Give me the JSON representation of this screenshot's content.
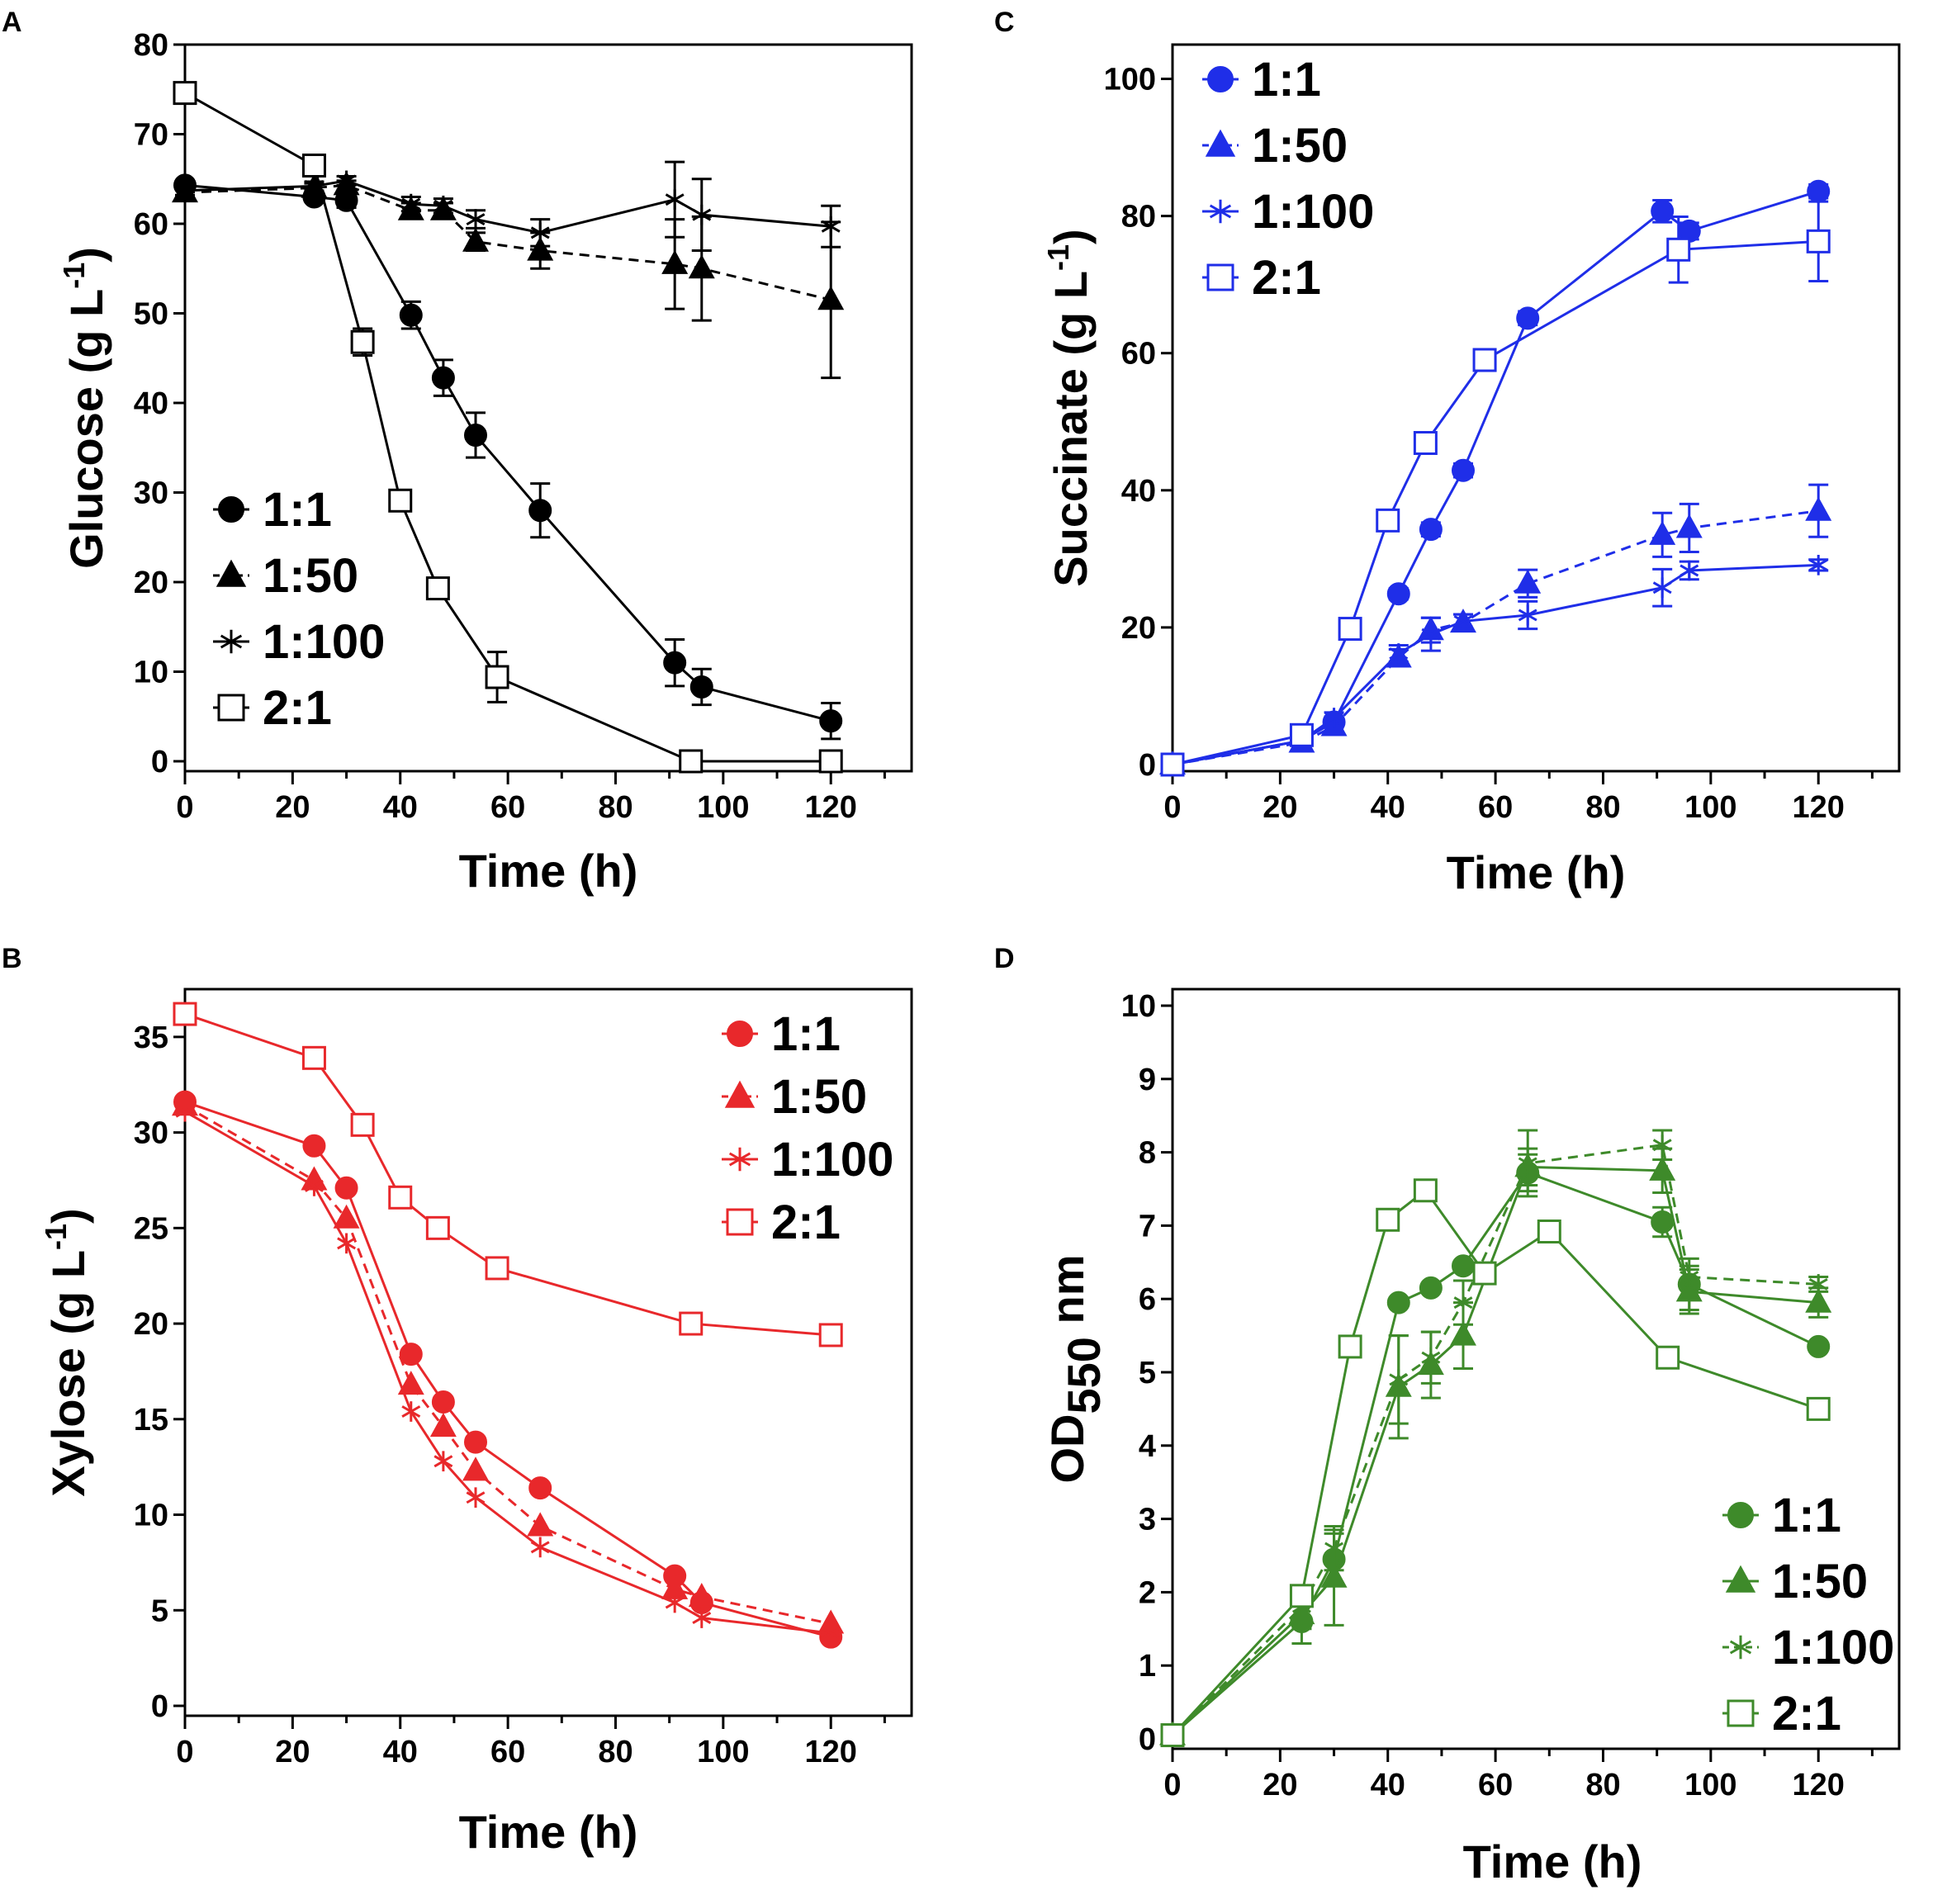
{
  "figure": {
    "time_label": "Time (h)"
  },
  "chart_data": [
    {
      "panel": "A",
      "type": "line",
      "title": "",
      "xlabel": "Time (h)",
      "ylabel": "Glucose (g L-1)",
      "ylabel_main": "Glucose (g L",
      "ylabel_sup": "-1",
      "ylabel_end": ")",
      "xlim": [
        0,
        135
      ],
      "ylim": [
        0,
        80
      ],
      "xticks": [
        0,
        20,
        40,
        60,
        80,
        100,
        120
      ],
      "yticks": [
        0,
        10,
        20,
        30,
        40,
        50,
        60,
        70,
        80
      ],
      "color": "#000000",
      "legend_position": "bottom-left",
      "series": [
        {
          "name": "1:1",
          "marker": "circle",
          "dashed": false,
          "x": [
            0,
            24,
            30,
            42,
            48,
            54,
            66,
            91,
            96,
            120
          ],
          "y": [
            64.3,
            63,
            62.6,
            49.8,
            42.8,
            36.4,
            28,
            11,
            8.3,
            4.5
          ],
          "err": [
            0.5,
            0.5,
            0.8,
            1.5,
            2,
            2.5,
            3,
            2.6,
            2,
            2
          ]
        },
        {
          "name": "1:50",
          "marker": "triangle",
          "dashed": true,
          "x": [
            0,
            24,
            30,
            42,
            48,
            54,
            66,
            91,
            96,
            120
          ],
          "y": [
            63.5,
            64,
            64.3,
            61.5,
            61.5,
            58,
            57,
            55.5,
            55,
            51.5
          ],
          "err": [
            0.5,
            0.5,
            0.5,
            0.8,
            0.8,
            1,
            2,
            5,
            5.8,
            8.7
          ]
        },
        {
          "name": "1:100",
          "marker": "star",
          "dashed": false,
          "x": [
            0,
            24,
            30,
            42,
            48,
            54,
            66,
            91,
            96,
            120
          ],
          "y": [
            63.7,
            64.2,
            64.8,
            62.2,
            62,
            60.5,
            59,
            62.7,
            61,
            59.7
          ],
          "err": [
            0.5,
            0.5,
            0.5,
            0.8,
            0.8,
            1,
            1.5,
            4.2,
            4,
            2.3
          ]
        },
        {
          "name": "2:1",
          "marker": "square",
          "dashed": false,
          "x": [
            0,
            24,
            33,
            40,
            47,
            58,
            94,
            120
          ],
          "y": [
            74.6,
            66.5,
            46.8,
            29.1,
            19.3,
            9.4,
            0,
            0
          ],
          "err": [
            0,
            0,
            1.5,
            0,
            0,
            2.8,
            0,
            0
          ]
        }
      ]
    },
    {
      "panel": "B",
      "type": "line",
      "title": "",
      "xlabel": "Time (h)",
      "ylabel": "Xylose (g L-1)",
      "ylabel_main": "Xylose (g L",
      "ylabel_sup": "-1",
      "ylabel_end": ")",
      "xlim": [
        0,
        135
      ],
      "ylim": [
        0,
        37.5
      ],
      "xticks": [
        0,
        20,
        40,
        60,
        80,
        100,
        120
      ],
      "yticks": [
        0,
        5,
        10,
        15,
        20,
        25,
        30,
        35
      ],
      "color": "#e8282b",
      "legend_position": "top-right",
      "series": [
        {
          "name": "1:1",
          "marker": "circle",
          "dashed": false,
          "x": [
            0,
            24,
            30,
            42,
            48,
            54,
            66,
            91,
            96,
            120
          ],
          "y": [
            31.6,
            29.3,
            27.1,
            18.4,
            15.9,
            13.8,
            11.4,
            6.8,
            5.4,
            3.6
          ],
          "err": []
        },
        {
          "name": "1:50",
          "marker": "triangle",
          "dashed": true,
          "x": [
            0,
            24,
            30,
            42,
            48,
            54,
            66,
            91,
            96,
            120
          ],
          "y": [
            31.4,
            27.5,
            25.5,
            16.8,
            14.6,
            12.3,
            9.4,
            6.1,
            5.7,
            4.3
          ],
          "err": []
        },
        {
          "name": "1:100",
          "marker": "star",
          "dashed": false,
          "x": [
            0,
            24,
            30,
            42,
            48,
            54,
            66,
            91,
            96,
            120
          ],
          "y": [
            31.1,
            27.2,
            24.2,
            15.4,
            12.8,
            10.9,
            8.3,
            5.4,
            4.6,
            3.8
          ],
          "err": []
        },
        {
          "name": "2:1",
          "marker": "square",
          "dashed": false,
          "x": [
            0,
            24,
            33,
            40,
            47,
            58,
            94,
            120
          ],
          "y": [
            36.2,
            33.9,
            30.4,
            26.6,
            25,
            22.9,
            20,
            19.4
          ],
          "err": []
        }
      ]
    },
    {
      "panel": "C",
      "type": "line",
      "title": "",
      "xlabel": "Time (h)",
      "ylabel": "Succinate (g L-1)",
      "ylabel_main": "Succinate (g L",
      "ylabel_sup": "-1",
      "ylabel_end": ")",
      "xlim": [
        0,
        135
      ],
      "ylim": [
        0,
        105
      ],
      "xticks": [
        0,
        20,
        40,
        60,
        80,
        100,
        120
      ],
      "yticks": [
        0,
        20,
        40,
        60,
        80,
        100
      ],
      "color": "#1f2ee8",
      "legend_position": "top-left",
      "series": [
        {
          "name": "1:1",
          "marker": "circle",
          "dashed": false,
          "x": [
            0,
            24,
            30,
            42,
            48,
            54,
            66,
            91,
            96,
            120
          ],
          "y": [
            0,
            3.5,
            6.2,
            24.9,
            34.3,
            42.9,
            65.1,
            80.7,
            77.8,
            83.6
          ],
          "err": [
            0,
            0.5,
            0.8,
            0.8,
            1,
            1,
            1,
            1.6,
            1.2,
            1
          ]
        },
        {
          "name": "1:50",
          "marker": "triangle",
          "dashed": true,
          "x": [
            0,
            24,
            30,
            42,
            48,
            54,
            66,
            91,
            96,
            120
          ],
          "y": [
            0,
            3.2,
            5.6,
            15.6,
            19.6,
            20.7,
            26.4,
            33.5,
            34.5,
            37
          ],
          "err": [
            0,
            0.5,
            0.8,
            1.2,
            1.8,
            1.2,
            2,
            3.2,
            3.5,
            3.8
          ]
        },
        {
          "name": "1:100",
          "marker": "star",
          "dashed": false,
          "x": [
            0,
            24,
            30,
            42,
            48,
            54,
            66,
            91,
            96,
            120
          ],
          "y": [
            0,
            3.5,
            6.8,
            16.2,
            19,
            20.9,
            21.8,
            25.8,
            28.3,
            29.1
          ],
          "err": [
            0,
            0.5,
            0.8,
            1.2,
            2.4,
            1,
            2,
            2.7,
            1.3,
            0.8
          ]
        },
        {
          "name": "2:1",
          "marker": "square",
          "dashed": false,
          "x": [
            0,
            24,
            33,
            40,
            47,
            58,
            94,
            120
          ],
          "y": [
            0,
            4.3,
            19.8,
            35.6,
            46.9,
            59,
            75.1,
            76.3
          ],
          "err": [
            0,
            0,
            0,
            0,
            0,
            1.5,
            4.8,
            5.8
          ]
        }
      ]
    },
    {
      "panel": "D",
      "type": "line",
      "title": "",
      "xlabel": "Time (h)",
      "ylabel": "OD550 nm",
      "ylabel_main": "OD",
      "ylabel_sub": "550",
      "ylabel_end": " nm",
      "xlim": [
        0,
        135
      ],
      "ylim": [
        0,
        10
      ],
      "xticks": [
        0,
        20,
        40,
        60,
        80,
        100,
        120
      ],
      "yticks": [
        0,
        1,
        2,
        3,
        4,
        5,
        6,
        7,
        8,
        9,
        10
      ],
      "color": "#3e8a2a",
      "legend_position": "bottom-right",
      "series": [
        {
          "name": "1:1",
          "marker": "circle",
          "dashed": false,
          "x": [
            0,
            24,
            30,
            42,
            48,
            54,
            66,
            91,
            96,
            120
          ],
          "y": [
            0.05,
            1.6,
            2.45,
            5.95,
            6.15,
            6.45,
            7.72,
            7.05,
            6.2,
            5.35
          ],
          "err": [
            0,
            0.3,
            0.35,
            0,
            0,
            0,
            0.25,
            0.2,
            0.35,
            0
          ]
        },
        {
          "name": "1:50",
          "marker": "triangle",
          "dashed": false,
          "x": [
            0,
            24,
            30,
            42,
            48,
            54,
            66,
            91,
            96,
            120
          ],
          "y": [
            0.05,
            1.7,
            2.2,
            4.8,
            5.1,
            5.5,
            7.8,
            7.75,
            6.1,
            5.95
          ],
          "err": [
            0,
            0.2,
            0.65,
            0.7,
            0.45,
            0.45,
            0.25,
            0.3,
            0.3,
            0.2
          ]
        },
        {
          "name": "1:100",
          "marker": "star",
          "dashed": true,
          "x": [
            0,
            24,
            30,
            42,
            48,
            54,
            66,
            91,
            96,
            120
          ],
          "y": [
            0.05,
            1.8,
            2.6,
            4.9,
            5.2,
            5.95,
            7.85,
            8.1,
            6.3,
            6.2
          ],
          "err": [
            0,
            0.15,
            0.3,
            0.6,
            0.35,
            0.3,
            0.45,
            0.2,
            0.15,
            0.1
          ]
        },
        {
          "name": "2:1",
          "marker": "square",
          "dashed": false,
          "x": [
            0,
            24,
            33,
            40,
            47,
            58,
            70,
            92,
            120
          ],
          "y": [
            0.05,
            1.95,
            5.35,
            7.08,
            7.48,
            6.35,
            6.92,
            5.2,
            4.5
          ],
          "err": [
            0,
            0,
            0,
            0,
            0,
            0,
            0,
            0,
            0
          ]
        }
      ]
    }
  ]
}
